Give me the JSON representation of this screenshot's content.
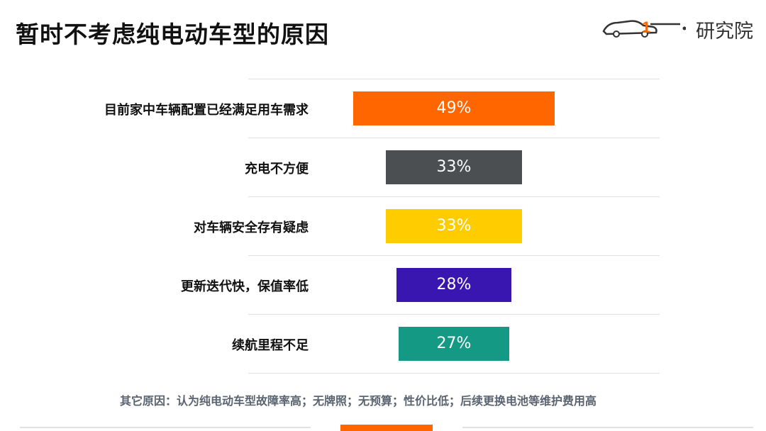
{
  "page": {
    "title": "暂时不考虑纯电动车型的原因",
    "logo_text": "研究院",
    "footnote": "其它原因：认为纯电动车型故障率高；无牌照；无预算；性价比低；后续更换电池等维护费用高",
    "accent_color": "#ff6600"
  },
  "chart_data": {
    "type": "bar",
    "orientation": "horizontal",
    "title": "暂时不考虑纯电动车型的原因",
    "xlabel": "",
    "ylabel": "",
    "unit": "%",
    "categories": [
      "目前家中车辆配置已经满足用车需求",
      "充电不方便",
      "对车辆安全存有疑虑",
      "更新迭代快，保值率低",
      "续航里程不足"
    ],
    "values": [
      49,
      33,
      33,
      28,
      27
    ],
    "value_labels": [
      "49%",
      "33%",
      "33%",
      "28%",
      "27%"
    ],
    "colors": [
      "#ff6600",
      "#4b4f52",
      "#ffcc00",
      "#3a16b0",
      "#149a84"
    ],
    "grid": true,
    "legend": "none"
  }
}
